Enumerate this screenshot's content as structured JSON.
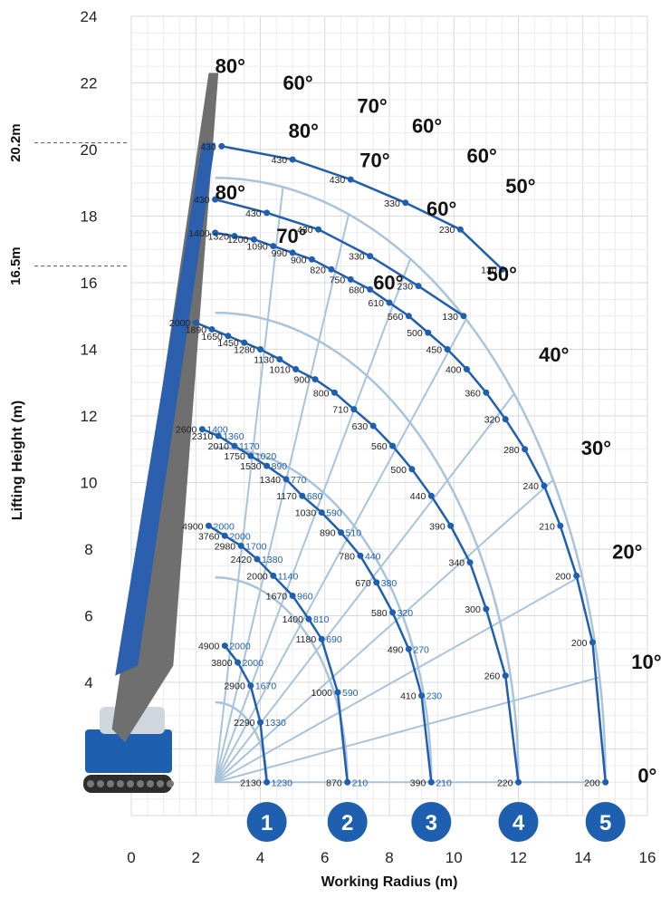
{
  "chart_data": {
    "type": "line",
    "title": "",
    "xlabel": "Working Radius (m)",
    "ylabel": "Lifting Height (m)",
    "xlim": [
      0,
      16
    ],
    "ylim": [
      0,
      24
    ],
    "x_ticks": [
      "0",
      "2",
      "4",
      "6",
      "8",
      "10",
      "12",
      "14",
      "16"
    ],
    "y_ticks": [
      "4",
      "6",
      "8",
      "10",
      "12",
      "14",
      "16",
      "18",
      "20",
      "22",
      "24"
    ],
    "grid": true,
    "boom_height_marks": [
      {
        "label": "20.2m",
        "value": 20.2
      },
      {
        "label": "16.5m",
        "value": 16.5
      }
    ],
    "boom_angles": [
      "0°",
      "10°",
      "20°",
      "30°",
      "40°",
      "50°",
      "60°",
      "70°",
      "80°"
    ],
    "jib_angles": [
      "80°",
      "70°",
      "60°"
    ],
    "jib_top_angles": [
      "80°",
      "60°",
      "70°",
      "60°",
      "60°",
      "50°"
    ],
    "boom_sections": [
      "1",
      "2",
      "3",
      "4",
      "5"
    ],
    "series": [
      {
        "name": "1",
        "arc_radius": 4.2,
        "points": [
          {
            "x": 4.2,
            "y": 1.0,
            "load": "2130",
            "load2": "1230"
          },
          {
            "x": 4.0,
            "y": 2.8,
            "load": "2290",
            "load2": "1330"
          },
          {
            "x": 3.7,
            "y": 3.9,
            "load": "2900",
            "load2": "1670"
          },
          {
            "x": 3.3,
            "y": 4.6,
            "load": "3800",
            "load2": "2000"
          },
          {
            "x": 2.9,
            "y": 5.1,
            "load": "4900",
            "load2": "2000"
          }
        ]
      },
      {
        "name": "2",
        "arc_radius": 6.7,
        "points": [
          {
            "x": 6.7,
            "y": 1.0,
            "load": "870",
            "load2": "210"
          },
          {
            "x": 6.4,
            "y": 3.7,
            "load": "1000",
            "load2": "590"
          },
          {
            "x": 5.9,
            "y": 5.3,
            "load": "1180",
            "load2": "690"
          },
          {
            "x": 5.5,
            "y": 5.9,
            "load": "1400",
            "load2": "810"
          },
          {
            "x": 5.0,
            "y": 6.6,
            "load": "1670",
            "load2": "960"
          },
          {
            "x": 4.4,
            "y": 7.2,
            "load": "2000",
            "load2": "1140"
          },
          {
            "x": 3.9,
            "y": 7.7,
            "load": "2420",
            "load2": "1380"
          },
          {
            "x": 3.4,
            "y": 8.1,
            "load": "2980",
            "load2": "1700"
          },
          {
            "x": 2.9,
            "y": 8.4,
            "load": "3760",
            "load2": "2000"
          },
          {
            "x": 2.4,
            "y": 8.7,
            "load": "4900",
            "load2": "2000"
          }
        ]
      },
      {
        "name": "3",
        "arc_radius": 9.3,
        "points": [
          {
            "x": 9.3,
            "y": 1.0,
            "load": "390",
            "load2": "210"
          },
          {
            "x": 9.0,
            "y": 3.6,
            "load": "410",
            "load2": "230"
          },
          {
            "x": 8.6,
            "y": 5.0,
            "load": "490",
            "load2": "270"
          },
          {
            "x": 8.1,
            "y": 6.1,
            "load": "580",
            "load2": "320"
          },
          {
            "x": 7.6,
            "y": 7.0,
            "load": "670",
            "load2": "380"
          },
          {
            "x": 7.1,
            "y": 7.8,
            "load": "780",
            "load2": "440"
          },
          {
            "x": 6.5,
            "y": 8.5,
            "load": "890",
            "load2": "510"
          },
          {
            "x": 5.9,
            "y": 9.1,
            "load": "1030",
            "load2": "590"
          },
          {
            "x": 5.3,
            "y": 9.6,
            "load": "1170",
            "load2": "680"
          },
          {
            "x": 4.8,
            "y": 10.1,
            "load": "1340",
            "load2": "770"
          },
          {
            "x": 4.2,
            "y": 10.5,
            "load": "1530",
            "load2": "890"
          },
          {
            "x": 3.7,
            "y": 10.8,
            "load": "1750",
            "load2": "1020"
          },
          {
            "x": 3.2,
            "y": 11.1,
            "load": "2010",
            "load2": "1170"
          },
          {
            "x": 2.7,
            "y": 11.4,
            "load": "2310",
            "load2": "1360"
          },
          {
            "x": 2.2,
            "y": 11.6,
            "load": "2600",
            "load2": "1400"
          }
        ]
      },
      {
        "name": "4",
        "arc_radius": 12.0,
        "points": [
          {
            "x": 12.0,
            "y": 1.0,
            "load": "220"
          },
          {
            "x": 11.6,
            "y": 4.2,
            "load": "260"
          },
          {
            "x": 11.0,
            "y": 6.2,
            "load": "300"
          },
          {
            "x": 10.5,
            "y": 7.6,
            "load": "340"
          },
          {
            "x": 9.9,
            "y": 8.7,
            "load": "390"
          },
          {
            "x": 9.3,
            "y": 9.6,
            "load": "440"
          },
          {
            "x": 8.7,
            "y": 10.4,
            "load": "500"
          },
          {
            "x": 8.1,
            "y": 11.1,
            "load": "560"
          },
          {
            "x": 7.5,
            "y": 11.7,
            "load": "630"
          },
          {
            "x": 6.9,
            "y": 12.2,
            "load": "710"
          },
          {
            "x": 6.3,
            "y": 12.7,
            "load": "800"
          },
          {
            "x": 5.7,
            "y": 13.1,
            "load": "900"
          },
          {
            "x": 5.1,
            "y": 13.4,
            "load": "1010"
          },
          {
            "x": 4.6,
            "y": 13.7,
            "load": "1130"
          },
          {
            "x": 4.0,
            "y": 14.0,
            "load": "1280"
          },
          {
            "x": 3.5,
            "y": 14.2,
            "load": "1450"
          },
          {
            "x": 3.0,
            "y": 14.4,
            "load": "1650"
          },
          {
            "x": 2.5,
            "y": 14.6,
            "load": "1890"
          },
          {
            "x": 2.0,
            "y": 14.8,
            "load": "2000"
          }
        ]
      },
      {
        "name": "5",
        "arc_radius": 14.7,
        "points": [
          {
            "x": 14.7,
            "y": 1.0,
            "load": "200"
          },
          {
            "x": 14.3,
            "y": 5.2,
            "load": "200"
          },
          {
            "x": 13.8,
            "y": 7.2,
            "load": "200"
          },
          {
            "x": 13.3,
            "y": 8.7,
            "load": "210"
          },
          {
            "x": 12.8,
            "y": 9.9,
            "load": "240"
          },
          {
            "x": 12.2,
            "y": 11.0,
            "load": "280"
          },
          {
            "x": 11.6,
            "y": 11.9,
            "load": "320"
          },
          {
            "x": 11.0,
            "y": 12.7,
            "load": "360"
          },
          {
            "x": 10.4,
            "y": 13.4,
            "load": "400"
          },
          {
            "x": 9.8,
            "y": 14.0,
            "load": "450"
          },
          {
            "x": 9.2,
            "y": 14.5,
            "load": "500"
          },
          {
            "x": 8.6,
            "y": 15.0,
            "load": "560"
          },
          {
            "x": 8.0,
            "y": 15.4,
            "load": "610"
          },
          {
            "x": 7.4,
            "y": 15.8,
            "load": "680"
          },
          {
            "x": 6.8,
            "y": 16.1,
            "load": "750"
          },
          {
            "x": 6.2,
            "y": 16.4,
            "load": "820"
          },
          {
            "x": 5.6,
            "y": 16.7,
            "load": "900"
          },
          {
            "x": 5.0,
            "y": 16.9,
            "load": "990"
          },
          {
            "x": 4.4,
            "y": 17.1,
            "load": "1090"
          },
          {
            "x": 3.8,
            "y": 17.3,
            "load": "1200"
          },
          {
            "x": 3.2,
            "y": 17.4,
            "load": "1320"
          },
          {
            "x": 2.6,
            "y": 17.5,
            "load": "1400"
          }
        ]
      },
      {
        "name": "jib-lower",
        "points": [
          {
            "x": 2.6,
            "y": 18.5,
            "load": "430"
          },
          {
            "x": 4.2,
            "y": 18.1,
            "load": "430"
          },
          {
            "x": 5.8,
            "y": 17.6,
            "load": "430"
          },
          {
            "x": 7.4,
            "y": 16.8,
            "load": "330"
          },
          {
            "x": 8.9,
            "y": 15.9,
            "load": "230"
          },
          {
            "x": 10.3,
            "y": 15.0,
            "load": "130"
          }
        ]
      },
      {
        "name": "jib-upper",
        "points": [
          {
            "x": 2.8,
            "y": 20.1,
            "load": "430"
          },
          {
            "x": 5.0,
            "y": 19.7,
            "load": "430"
          },
          {
            "x": 6.8,
            "y": 19.1,
            "load": "430"
          },
          {
            "x": 8.5,
            "y": 18.4,
            "load": "330"
          },
          {
            "x": 10.2,
            "y": 17.6,
            "load": "230"
          },
          {
            "x": 11.5,
            "y": 16.4,
            "load": "130"
          }
        ]
      }
    ]
  },
  "axis_labels": {
    "x_title": "Working Radius (m)",
    "y_title": "Lifting Height (m)"
  }
}
